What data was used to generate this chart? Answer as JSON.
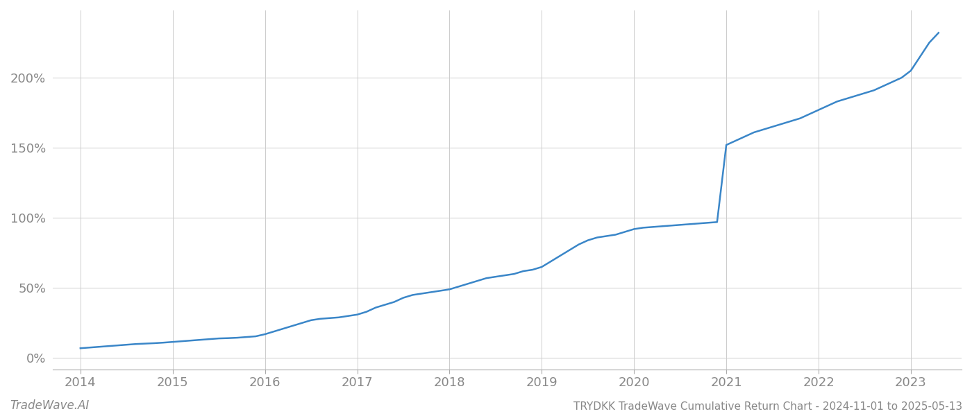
{
  "title": "TRYDKK TradeWave Cumulative Return Chart - 2024-11-01 to 2025-05-13",
  "watermark": "TradeWave.AI",
  "line_color": "#3a86c8",
  "background_color": "#ffffff",
  "grid_color": "#cccccc",
  "x_ticks": [
    2014,
    2015,
    2016,
    2017,
    2018,
    2019,
    2020,
    2021,
    2022,
    2023
  ],
  "y_ticks": [
    0,
    50,
    100,
    150,
    200
  ],
  "xlim": [
    2013.7,
    2023.55
  ],
  "ylim": [
    -8,
    248
  ],
  "x_values": [
    2014.0,
    2014.1,
    2014.2,
    2014.3,
    2014.4,
    2014.5,
    2014.6,
    2014.7,
    2014.8,
    2014.9,
    2015.0,
    2015.1,
    2015.2,
    2015.3,
    2015.4,
    2015.5,
    2015.6,
    2015.7,
    2015.8,
    2015.9,
    2016.0,
    2016.1,
    2016.2,
    2016.3,
    2016.4,
    2016.5,
    2016.6,
    2016.7,
    2016.8,
    2016.9,
    2017.0,
    2017.1,
    2017.2,
    2017.3,
    2017.4,
    2017.5,
    2017.6,
    2017.7,
    2017.8,
    2017.9,
    2018.0,
    2018.1,
    2018.2,
    2018.3,
    2018.4,
    2018.5,
    2018.6,
    2018.7,
    2018.8,
    2018.9,
    2019.0,
    2019.1,
    2019.2,
    2019.3,
    2019.4,
    2019.5,
    2019.6,
    2019.7,
    2019.8,
    2019.9,
    2020.0,
    2020.1,
    2020.2,
    2020.3,
    2020.4,
    2020.5,
    2020.6,
    2020.7,
    2020.8,
    2020.9,
    2021.0,
    2021.1,
    2021.2,
    2021.3,
    2021.4,
    2021.5,
    2021.6,
    2021.7,
    2021.8,
    2021.9,
    2022.0,
    2022.1,
    2022.2,
    2022.3,
    2022.4,
    2022.5,
    2022.6,
    2022.7,
    2022.8,
    2022.9,
    2023.0,
    2023.1,
    2023.2,
    2023.3
  ],
  "y_values": [
    7,
    7.5,
    8,
    8.5,
    9,
    9.5,
    10,
    10.3,
    10.6,
    11,
    11.5,
    12,
    12.5,
    13,
    13.5,
    14,
    14.2,
    14.5,
    15,
    15.5,
    17,
    19,
    21,
    23,
    25,
    27,
    28,
    28.5,
    29,
    30,
    31,
    33,
    36,
    38,
    40,
    43,
    45,
    46,
    47,
    48,
    49,
    51,
    53,
    55,
    57,
    58,
    59,
    60,
    62,
    63,
    65,
    69,
    73,
    77,
    81,
    84,
    86,
    87,
    88,
    90,
    92,
    93,
    93.5,
    94,
    94.5,
    95,
    95.5,
    96,
    96.5,
    97,
    152,
    155,
    158,
    161,
    163,
    165,
    167,
    169,
    171,
    174,
    177,
    180,
    183,
    185,
    187,
    189,
    191,
    194,
    197,
    200,
    205,
    215,
    225,
    232
  ],
  "title_fontsize": 11,
  "tick_fontsize": 13,
  "watermark_fontsize": 12,
  "line_width": 1.8
}
